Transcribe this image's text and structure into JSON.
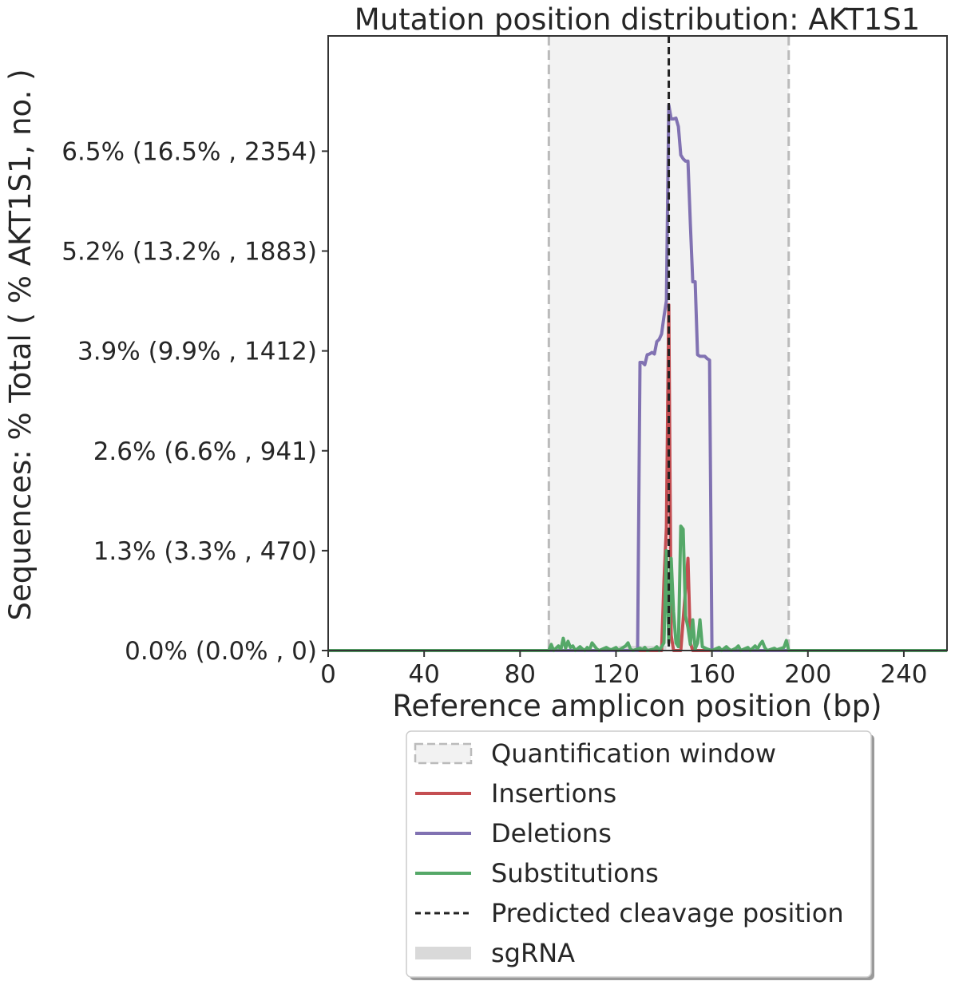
{
  "chart_data": {
    "type": "line",
    "title": "Mutation position distribution: AKT1S1",
    "xlabel": "Reference amplicon position (bp)",
    "ylabel": "Sequences: % Total ( % AKT1S1, no. )",
    "xlim": [
      0,
      258
    ],
    "ylim": [
      0,
      8.0
    ],
    "x_ticks": [
      {
        "value": 0,
        "label": "0"
      },
      {
        "value": 40,
        "label": "40"
      },
      {
        "value": 80,
        "label": "80"
      },
      {
        "value": 120,
        "label": "120"
      },
      {
        "value": 160,
        "label": "160"
      },
      {
        "value": 200,
        "label": "200"
      },
      {
        "value": 240,
        "label": "240"
      }
    ],
    "y_ticks": [
      {
        "value": 0,
        "label": "0.0% (0.0% , 0)"
      },
      {
        "value": 1.3,
        "label": "1.3% (3.3% , 470)"
      },
      {
        "value": 2.6,
        "label": "2.6% (6.6% , 941)"
      },
      {
        "value": 3.9,
        "label": "3.9% (9.9% , 1412)"
      },
      {
        "value": 5.2,
        "label": "5.2% (13.2% , 1883)"
      },
      {
        "value": 6.5,
        "label": "6.5% (16.5% , 2354)"
      }
    ],
    "quantification_window": [
      92,
      192
    ],
    "cleavage_position": 142,
    "sgrna": [
      121,
      141
    ],
    "grid": false,
    "legend_placement": "below plot",
    "series": [
      {
        "name": "Insertions",
        "color": "#c44e52",
        "points": [
          [
            0,
            0
          ],
          [
            139,
            0
          ],
          [
            140,
            0.9
          ],
          [
            141,
            1.6
          ],
          [
            142,
            4.5
          ],
          [
            143,
            0.2
          ],
          [
            144,
            0
          ],
          [
            147,
            0
          ],
          [
            148,
            0.4
          ],
          [
            149,
            0.8
          ],
          [
            150,
            1.2
          ],
          [
            151,
            0.1
          ],
          [
            152,
            0
          ],
          [
            258,
            0
          ]
        ]
      },
      {
        "name": "Deletions",
        "color": "#8172b2",
        "points": [
          [
            0,
            0
          ],
          [
            129,
            0
          ],
          [
            130,
            3.75
          ],
          [
            131,
            3.75
          ],
          [
            132,
            3.72
          ],
          [
            133,
            3.85
          ],
          [
            134,
            3.86
          ],
          [
            135,
            3.88
          ],
          [
            136,
            3.86
          ],
          [
            137,
            4.02
          ],
          [
            138,
            4.05
          ],
          [
            139,
            4.12
          ],
          [
            140,
            4.35
          ],
          [
            141,
            4.55
          ],
          [
            142,
            7.1
          ],
          [
            143,
            6.92
          ],
          [
            144,
            6.92
          ],
          [
            145,
            6.93
          ],
          [
            146,
            6.82
          ],
          [
            147,
            6.45
          ],
          [
            148,
            6.4
          ],
          [
            149,
            6.37
          ],
          [
            150,
            6.37
          ],
          [
            151,
            5.55
          ],
          [
            152,
            4.8
          ],
          [
            153,
            4.8
          ],
          [
            154,
            3.85
          ],
          [
            155,
            3.83
          ],
          [
            156,
            3.83
          ],
          [
            157,
            3.83
          ],
          [
            158,
            3.8
          ],
          [
            159,
            3.78
          ],
          [
            160,
            0
          ],
          [
            258,
            0
          ]
        ]
      },
      {
        "name": "Substitutions",
        "color": "#55a868",
        "points": [
          [
            0,
            0
          ],
          [
            92,
            0
          ],
          [
            93,
            0.08
          ],
          [
            94,
            0
          ],
          [
            96,
            0.06
          ],
          [
            97,
            0.01
          ],
          [
            98,
            0.16
          ],
          [
            99,
            0.03
          ],
          [
            100,
            0.12
          ],
          [
            101,
            0.04
          ],
          [
            102,
            0.06
          ],
          [
            103,
            0
          ],
          [
            105,
            0.05
          ],
          [
            106,
            0.02
          ],
          [
            107,
            0
          ],
          [
            108,
            0.04
          ],
          [
            109,
            0.01
          ],
          [
            110,
            0.1
          ],
          [
            111,
            0.06
          ],
          [
            112,
            0.02
          ],
          [
            113,
            0
          ],
          [
            116,
            0.04
          ],
          [
            117,
            0.02
          ],
          [
            118,
            0.01
          ],
          [
            120,
            0.04
          ],
          [
            121,
            0
          ],
          [
            124,
            0.06
          ],
          [
            125,
            0.1
          ],
          [
            126,
            0.02
          ],
          [
            127,
            0
          ],
          [
            130,
            0.03
          ],
          [
            131,
            0.01
          ],
          [
            132,
            0.04
          ],
          [
            133,
            0
          ],
          [
            136,
            0.02
          ],
          [
            137,
            0.05
          ],
          [
            138,
            0
          ],
          [
            140,
            0.1
          ],
          [
            141,
            1.3
          ],
          [
            142,
            0.1
          ],
          [
            143,
            1.2
          ],
          [
            144,
            0.5
          ],
          [
            145,
            0.1
          ],
          [
            146,
            0.05
          ],
          [
            147,
            1.62
          ],
          [
            148,
            1.58
          ],
          [
            149,
            0.45
          ],
          [
            150,
            0.3
          ],
          [
            151,
            0.08
          ],
          [
            152,
            0.4
          ],
          [
            153,
            0.02
          ],
          [
            154,
            0.1
          ],
          [
            155,
            0.4
          ],
          [
            156,
            0.05
          ],
          [
            158,
            0.02
          ],
          [
            160,
            0
          ],
          [
            163,
            0.04
          ],
          [
            164,
            0
          ],
          [
            166,
            0.05
          ],
          [
            167,
            0.02
          ],
          [
            168,
            0
          ],
          [
            170,
            0.03
          ],
          [
            171,
            0.06
          ],
          [
            172,
            0
          ],
          [
            175,
            0.04
          ],
          [
            176,
            0
          ],
          [
            178,
            0.06
          ],
          [
            179,
            0.02
          ],
          [
            180,
            0.08
          ],
          [
            181,
            0.12
          ],
          [
            182,
            0.04
          ],
          [
            183,
            0
          ],
          [
            186,
            0.03
          ],
          [
            187,
            0.01
          ],
          [
            190,
            0.04
          ],
          [
            191,
            0.13
          ],
          [
            192,
            0
          ],
          [
            258,
            0
          ]
        ]
      }
    ]
  },
  "legend": [
    {
      "label": "Quantification window",
      "kind": "window"
    },
    {
      "label": "Insertions",
      "kind": "line",
      "color": "#c44e52"
    },
    {
      "label": "Deletions",
      "kind": "line",
      "color": "#8172b2"
    },
    {
      "label": "Substitutions",
      "kind": "line",
      "color": "#55a868"
    },
    {
      "label": "Predicted cleavage position",
      "kind": "dashed",
      "color": "#222222"
    },
    {
      "label": "sgRNA",
      "kind": "band",
      "color": "#d9d9d9"
    }
  ]
}
